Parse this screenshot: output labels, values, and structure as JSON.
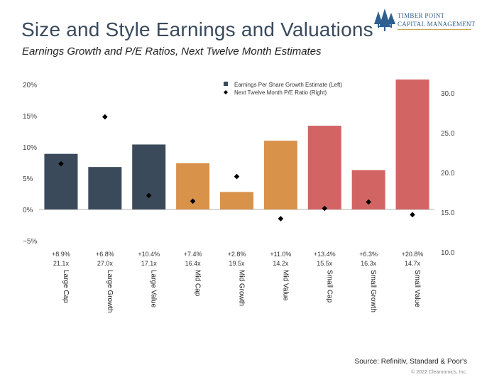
{
  "header": {
    "title": "Size and Style Earnings and Valuations",
    "subtitle": "Earnings Growth and P/E Ratios, Next Twelve Month Estimates"
  },
  "logo": {
    "line1": "TIMBER POINT",
    "line2": "CAPITAL MANAGEMENT",
    "icon": "tree-logo-icon"
  },
  "footer": {
    "source": "Source: Refinitiv, Standard & Poor's",
    "copyright": "© 2022 Clearnomics, Inc."
  },
  "chart_data": {
    "type": "bar",
    "categories": [
      "Large Cap",
      "Large Growth",
      "Large Value",
      "Mid Cap",
      "Mid Growth",
      "Mid Value",
      "Small Cap",
      "Small Growth",
      "Small Value"
    ],
    "series": [
      {
        "name": "Earnings Per Share Growth Estimate (Left)",
        "type": "bar",
        "axis": "left",
        "values": [
          8.9,
          6.8,
          10.4,
          7.4,
          2.8,
          11.0,
          13.4,
          6.3,
          20.8
        ],
        "labels": [
          "+8.9%",
          "+6.8%",
          "+10.4%",
          "+7.4%",
          "+2.8%",
          "+11.0%",
          "+13.4%",
          "+6.3%",
          "+20.8%"
        ],
        "colors": [
          "#3b4a5a",
          "#3b4a5a",
          "#3b4a5a",
          "#d9924a",
          "#d9924a",
          "#d9924a",
          "#d26464",
          "#d26464",
          "#d26464"
        ]
      },
      {
        "name": "Next Twelve Month P/E Ratio (Right)",
        "type": "scatter",
        "axis": "right",
        "values": [
          21.1,
          27.0,
          17.1,
          16.4,
          19.5,
          14.2,
          15.5,
          16.3,
          14.7
        ],
        "labels": [
          "21.1x",
          "27.0x",
          "17.1x",
          "16.4x",
          "19.5x",
          "14.2x",
          "15.5x",
          "16.3x",
          "14.7x"
        ],
        "color": "#000000",
        "marker": "diamond"
      }
    ],
    "y_left": {
      "ylim": [
        -5,
        20
      ],
      "ticks": [
        20,
        15,
        10,
        5,
        0,
        -5
      ],
      "tick_labels": [
        "20%",
        "15%",
        "10%",
        "5%",
        "0%",
        "−5%"
      ]
    },
    "y_right": {
      "ylim": [
        10,
        32.2
      ],
      "ticks": [
        30,
        25,
        20,
        15,
        10
      ],
      "tick_labels": [
        "30.0",
        "25.0",
        "20.0",
        "15.0",
        "10.0"
      ]
    },
    "legend_position": "top-center",
    "grid": false,
    "zero_line": true,
    "colors": {
      "large": "#3b4a5a",
      "mid": "#d9924a",
      "small": "#d26464",
      "zero_line": "#b0b0b0",
      "axis_text": "#444444"
    }
  }
}
